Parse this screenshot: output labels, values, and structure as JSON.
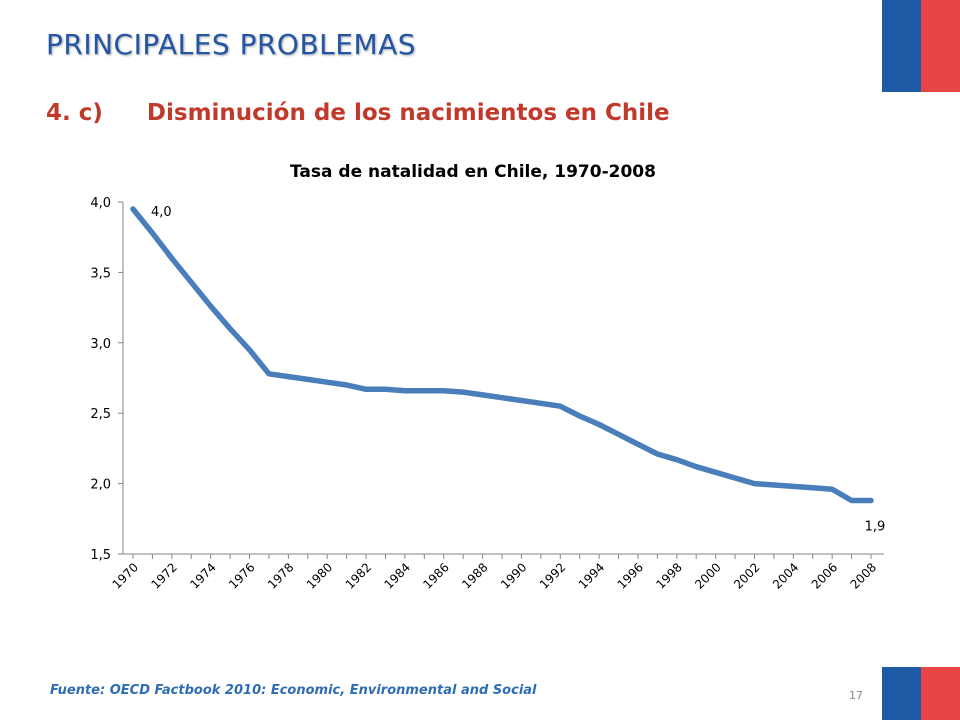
{
  "slide": {
    "section_title": "PRINCIPALES PROBLEMAS",
    "subtitle_number": "4. c)",
    "subtitle_text": "Disminución de los nacimientos en Chile",
    "source": "Fuente: OECD Factbook 2010: Economic, Environmental and Social",
    "page_number": "17"
  },
  "colors": {
    "title_blue": "#2255a4",
    "subtitle_red": "#c0392b",
    "line_blue": "#4a7ebb",
    "flag_blue": "#1f5aa6",
    "flag_red": "#e84545"
  },
  "chart_data": {
    "type": "line",
    "title": "Tasa de natalidad en Chile, 1970-2008",
    "xlabel": "",
    "ylabel": "",
    "ylim": [
      1.5,
      4.0
    ],
    "yticks": [
      "4,0",
      "3,5",
      "3,0",
      "2,5",
      "2,0",
      "1,5"
    ],
    "ytick_values": [
      4.0,
      3.5,
      3.0,
      2.5,
      2.0,
      1.5
    ],
    "xtick_labels": [
      "1970",
      "1972",
      "1974",
      "1976",
      "1978",
      "1980",
      "1982",
      "1984",
      "1986",
      "1988",
      "1990",
      "1992",
      "1994",
      "1996",
      "1998",
      "2000",
      "2002",
      "2004",
      "2006",
      "2008"
    ],
    "xlim": [
      1970,
      2008
    ],
    "grid": false,
    "legend": "none",
    "series": [
      {
        "x": [
          1970,
          1971,
          1972,
          1973,
          1974,
          1975,
          1976,
          1977,
          1978,
          1979,
          1980,
          1981,
          1982,
          1983,
          1984,
          1985,
          1986,
          1987,
          1988,
          1989,
          1990,
          1991,
          1992,
          1993,
          1994,
          1995,
          1996,
          1997,
          1998,
          1999,
          2000,
          2001,
          2002,
          2003,
          2004,
          2005,
          2006,
          2007,
          2008
        ],
        "y": [
          3.95,
          3.78,
          3.6,
          3.43,
          3.26,
          3.1,
          2.95,
          2.78,
          2.76,
          2.74,
          2.72,
          2.7,
          2.67,
          2.67,
          2.66,
          2.66,
          2.66,
          2.65,
          2.63,
          2.61,
          2.59,
          2.57,
          2.55,
          2.48,
          2.42,
          2.35,
          2.28,
          2.21,
          2.17,
          2.12,
          2.08,
          2.04,
          2.0,
          1.99,
          1.98,
          1.97,
          1.96,
          1.88,
          1.88
        ]
      }
    ],
    "annotations": [
      {
        "text": "4,0",
        "x": 1970,
        "y": 3.95
      },
      {
        "text": "1,9",
        "x": 2008,
        "y": 1.88
      }
    ]
  }
}
